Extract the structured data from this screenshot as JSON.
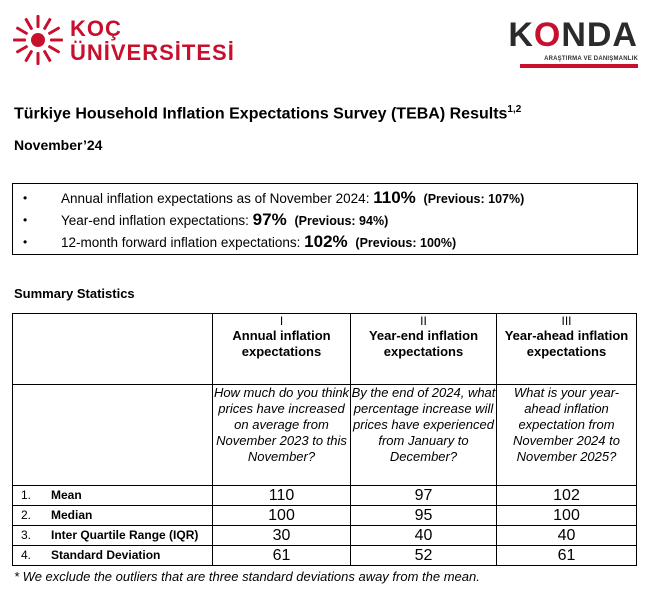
{
  "logos": {
    "koc": {
      "line1": "KOÇ",
      "line2": "ÜNİVERSİTESİ",
      "color": "#c8102e"
    },
    "konda": {
      "word_k": "K",
      "word_o": "O",
      "word_rest": "NDA",
      "tagline": "ARAŞTIRMA VE DANIŞMANLIK",
      "accent": "#c8102e"
    }
  },
  "title": "Türkiye Household Inflation Expectations Survey (TEBA) Results",
  "title_sup": "1,2",
  "subtitle": "November’24",
  "highlights": [
    {
      "bullet": "•",
      "text": "Annual inflation expectations as of November 2024:",
      "value": "110%",
      "previous": "(Previous: 107%)"
    },
    {
      "bullet": "•",
      "text": "Year-end inflation expectations:",
      "value": "97%",
      "previous": "(Previous: 94%)"
    },
    {
      "bullet": "•",
      "text": "12-month forward inflation expectations:",
      "value": "102%",
      "previous": "(Previous: 100%)"
    }
  ],
  "stats_label": "Summary Statistics",
  "table": {
    "columns": [
      {
        "roman": "I",
        "heading": "Annual inflation expectations",
        "question": "How much do you think prices have increased on average from November 2023 to this November?"
      },
      {
        "roman": "II",
        "heading": "Year-end inflation expectations",
        "question": "By the end of 2024, what percentage increase will prices have experienced from January to December?"
      },
      {
        "roman": "III",
        "heading": "Year-ahead inflation expectations",
        "question": "What is your year-ahead inflation expectation from November 2024 to November 2025?"
      }
    ],
    "rows": [
      {
        "num": "1.",
        "label": "Mean",
        "values": [
          "110",
          "97",
          "102"
        ]
      },
      {
        "num": "2.",
        "label": "Median",
        "values": [
          "100",
          "95",
          "100"
        ]
      },
      {
        "num": "3.",
        "label": "Inter Quartile Range (IQR)",
        "values": [
          "30",
          "40",
          "40"
        ]
      },
      {
        "num": "4.",
        "label": "Standard Deviation",
        "values": [
          "61",
          "52",
          "61"
        ]
      }
    ]
  },
  "footnote": "* We exclude the outliers that are three standard deviations away from the mean."
}
